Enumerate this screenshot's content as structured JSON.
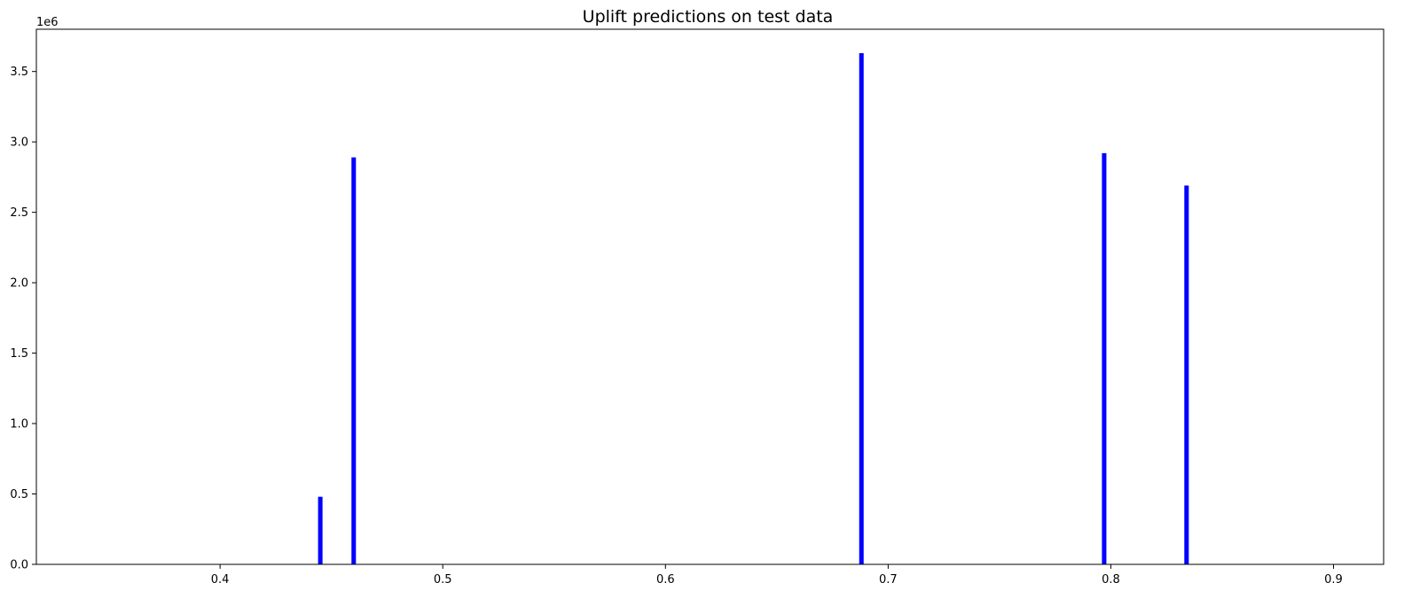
{
  "chart_data": {
    "type": "bar",
    "title": "Uplift predictions on test data",
    "xlabel": "",
    "ylabel": "",
    "y_offset_label": "1e6",
    "xlim": [
      0.3175,
      0.9225
    ],
    "ylim": [
      0,
      3800000
    ],
    "x_ticks": [
      0.4,
      0.5,
      0.6,
      0.7,
      0.8,
      0.9
    ],
    "x_tick_labels": [
      "0.4",
      "0.5",
      "0.6",
      "0.7",
      "0.8",
      "0.9"
    ],
    "y_ticks": [
      0,
      500000,
      1000000,
      1500000,
      2000000,
      2500000,
      3000000,
      3500000
    ],
    "y_tick_labels": [
      "0.0",
      "0.5",
      "1.0",
      "1.5",
      "2.0",
      "2.5",
      "3.0",
      "3.5"
    ],
    "bar_width": 0.002,
    "bar_color": "#0000ff",
    "bars": [
      {
        "x": 0.445,
        "value": 480000
      },
      {
        "x": 0.46,
        "value": 2890000
      },
      {
        "x": 0.688,
        "value": 3630000
      },
      {
        "x": 0.797,
        "value": 2920000
      },
      {
        "x": 0.834,
        "value": 2690000
      }
    ],
    "grid": false,
    "legend": "none"
  }
}
